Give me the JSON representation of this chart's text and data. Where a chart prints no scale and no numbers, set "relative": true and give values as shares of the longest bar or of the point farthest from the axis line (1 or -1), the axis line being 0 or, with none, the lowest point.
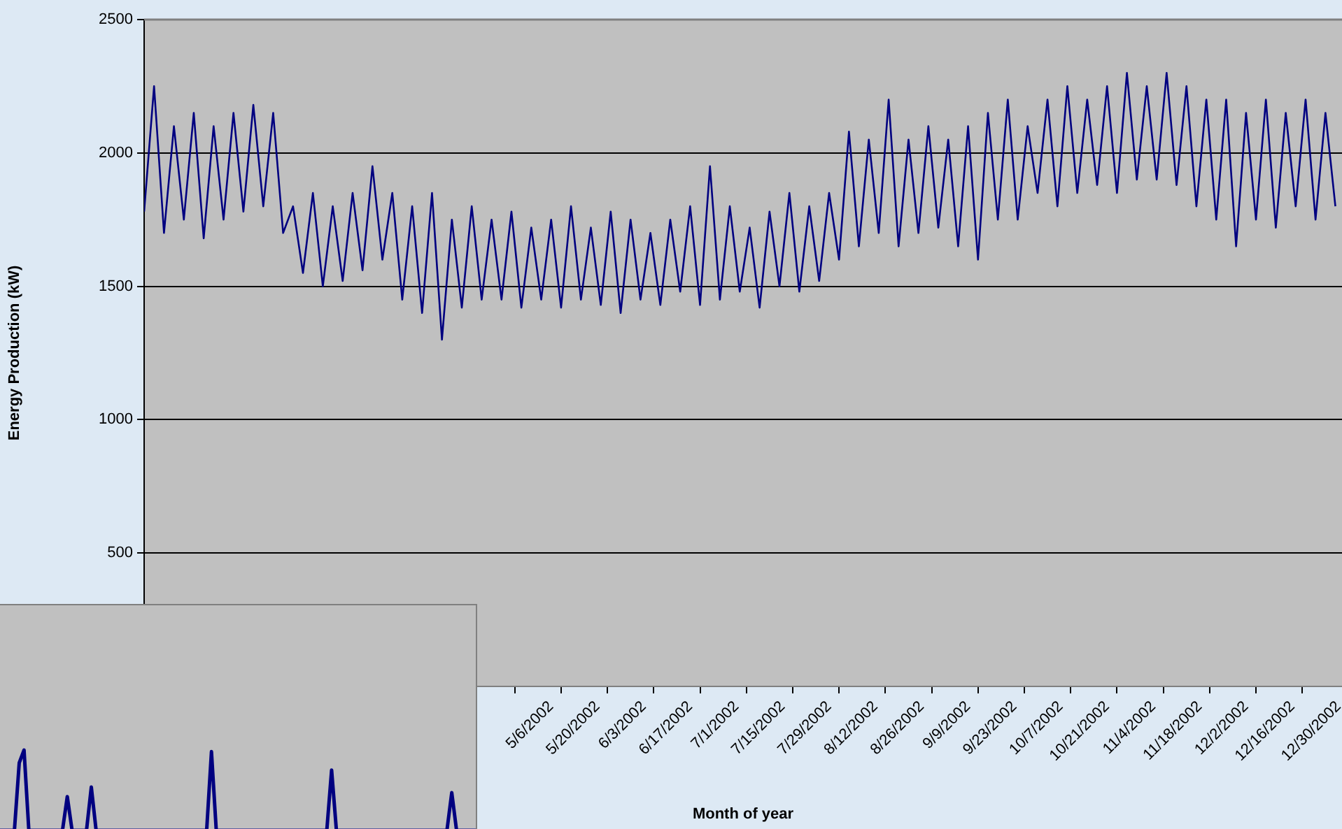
{
  "chart_data": [
    {
      "type": "line",
      "xlabel": "Month of year",
      "ylabel": "Energy Production (kW)",
      "color": "#000080",
      "grid": "y",
      "legend": false,
      "marker": "none",
      "xlim": [
        "2002-01-14",
        "2003-01-11"
      ],
      "ylim": [
        0,
        2500
      ],
      "yticks": [
        500,
        1000,
        1500,
        2000,
        2500
      ],
      "xticks": [
        {
          "value": "2002-05-06",
          "label": "5/6/2002"
        },
        {
          "value": "2002-05-20",
          "label": "5/20/2002"
        },
        {
          "value": "2002-06-03",
          "label": "6/3/2002"
        },
        {
          "value": "2002-06-17",
          "label": "6/17/2002"
        },
        {
          "value": "2002-07-01",
          "label": "7/1/2002"
        },
        {
          "value": "2002-07-15",
          "label": "7/15/2002"
        },
        {
          "value": "2002-07-29",
          "label": "7/29/2002"
        },
        {
          "value": "2002-08-12",
          "label": "8/12/2002"
        },
        {
          "value": "2002-08-26",
          "label": "8/26/2002"
        },
        {
          "value": "2002-09-09",
          "label": "9/9/2002"
        },
        {
          "value": "2002-09-23",
          "label": "9/23/2002"
        },
        {
          "value": "2002-10-07",
          "label": "10/7/2002"
        },
        {
          "value": "2002-10-21",
          "label": "10/21/2002"
        },
        {
          "value": "2002-11-04",
          "label": "11/4/2002"
        },
        {
          "value": "2002-11-18",
          "label": "11/18/2002"
        },
        {
          "value": "2002-12-02",
          "label": "12/2/2002"
        },
        {
          "value": "2002-12-16",
          "label": "12/16/2002"
        },
        {
          "value": "2002-12-30",
          "label": "12/30/2002"
        }
      ],
      "x": [
        "2002-01-14",
        "2002-01-17",
        "2002-01-20",
        "2002-01-23",
        "2002-01-26",
        "2002-01-29",
        "2002-02-01",
        "2002-02-04",
        "2002-02-07",
        "2002-02-10",
        "2002-02-13",
        "2002-02-16",
        "2002-02-19",
        "2002-02-22",
        "2002-02-25",
        "2002-02-28",
        "2002-03-03",
        "2002-03-06",
        "2002-03-09",
        "2002-03-12",
        "2002-03-15",
        "2002-03-18",
        "2002-03-21",
        "2002-03-24",
        "2002-03-27",
        "2002-03-30",
        "2002-04-02",
        "2002-04-05",
        "2002-04-08",
        "2002-04-11",
        "2002-04-14",
        "2002-04-17",
        "2002-04-20",
        "2002-04-23",
        "2002-04-26",
        "2002-04-29",
        "2002-05-02",
        "2002-05-05",
        "2002-05-08",
        "2002-05-11",
        "2002-05-14",
        "2002-05-17",
        "2002-05-20",
        "2002-05-23",
        "2002-05-26",
        "2002-05-29",
        "2002-06-01",
        "2002-06-04",
        "2002-06-07",
        "2002-06-10",
        "2002-06-13",
        "2002-06-16",
        "2002-06-19",
        "2002-06-22",
        "2002-06-25",
        "2002-06-28",
        "2002-07-01",
        "2002-07-04",
        "2002-07-07",
        "2002-07-10",
        "2002-07-13",
        "2002-07-16",
        "2002-07-19",
        "2002-07-22",
        "2002-07-25",
        "2002-07-28",
        "2002-07-31",
        "2002-08-03",
        "2002-08-06",
        "2002-08-09",
        "2002-08-12",
        "2002-08-15",
        "2002-08-18",
        "2002-08-21",
        "2002-08-24",
        "2002-08-27",
        "2002-08-30",
        "2002-09-02",
        "2002-09-05",
        "2002-09-08",
        "2002-09-11",
        "2002-09-14",
        "2002-09-17",
        "2002-09-20",
        "2002-09-23",
        "2002-09-26",
        "2002-09-29",
        "2002-10-02",
        "2002-10-05",
        "2002-10-08",
        "2002-10-11",
        "2002-10-14",
        "2002-10-17",
        "2002-10-20",
        "2002-10-23",
        "2002-10-26",
        "2002-10-29",
        "2002-11-01",
        "2002-11-04",
        "2002-11-07",
        "2002-11-10",
        "2002-11-13",
        "2002-11-16",
        "2002-11-19",
        "2002-11-22",
        "2002-11-25",
        "2002-11-28",
        "2002-12-01",
        "2002-12-04",
        "2002-12-07",
        "2002-12-10",
        "2002-12-13",
        "2002-12-16",
        "2002-12-19",
        "2002-12-22",
        "2002-12-25",
        "2002-12-28",
        "2002-12-31",
        "2003-01-03",
        "2003-01-06",
        "2003-01-09"
      ],
      "values": [
        1780,
        2250,
        1700,
        2100,
        1750,
        2150,
        1680,
        2100,
        1750,
        2150,
        1780,
        2180,
        1800,
        2150,
        1700,
        1800,
        1550,
        1850,
        1500,
        1800,
        1520,
        1850,
        1560,
        1950,
        1600,
        1850,
        1450,
        1800,
        1400,
        1850,
        1300,
        1750,
        1420,
        1800,
        1450,
        1750,
        1450,
        1780,
        1420,
        1720,
        1450,
        1750,
        1420,
        1800,
        1450,
        1720,
        1430,
        1780,
        1400,
        1750,
        1450,
        1700,
        1430,
        1750,
        1480,
        1800,
        1430,
        1950,
        1450,
        1800,
        1480,
        1720,
        1420,
        1780,
        1500,
        1850,
        1480,
        1800,
        1520,
        1850,
        1600,
        2080,
        1650,
        2050,
        1700,
        2200,
        1650,
        2050,
        1700,
        2100,
        1720,
        2050,
        1650,
        2100,
        1600,
        2150,
        1750,
        2200,
        1750,
        2100,
        1850,
        2200,
        1800,
        2250,
        1850,
        2200,
        1880,
        2250,
        1850,
        2300,
        1900,
        2250,
        1900,
        2300,
        1880,
        2250,
        1800,
        2200,
        1750,
        2200,
        1650,
        2150,
        1750,
        2200,
        1720,
        2150,
        1800,
        2200,
        1750,
        2150,
        1800
      ]
    },
    {
      "type": "line",
      "color": "#000080",
      "legend": false,
      "marker": "none",
      "relative": true,
      "categories": [
        null,
        null,
        null,
        null,
        null,
        null,
        null,
        null,
        null,
        null,
        null,
        null,
        null,
        null,
        null,
        null,
        null,
        null,
        null,
        null,
        null,
        null,
        null,
        null,
        null,
        null,
        null,
        null,
        null,
        null,
        null,
        null,
        null,
        null,
        null,
        null,
        null,
        null,
        null,
        null,
        null,
        null,
        null,
        null,
        null,
        null,
        null,
        null,
        null,
        null,
        null,
        null,
        null,
        null,
        null,
        null,
        null,
        null,
        null,
        null,
        null,
        null,
        null,
        null,
        null,
        null,
        null,
        null,
        null,
        null,
        null,
        null,
        null,
        null,
        null,
        null,
        null,
        null,
        null,
        null,
        null,
        null,
        null,
        null,
        null,
        null,
        null,
        null,
        null,
        null,
        null,
        null,
        null,
        null,
        null,
        null,
        null,
        null,
        null,
        null
      ],
      "values": [
        0,
        0,
        0,
        0,
        0.84,
        1,
        0,
        0,
        0,
        0,
        0,
        0,
        0,
        0,
        0.42,
        0,
        0,
        0,
        0,
        0.54,
        0,
        0,
        0,
        0,
        0,
        0,
        0,
        0,
        0,
        0,
        0,
        0,
        0,
        0,
        0,
        0,
        0,
        0,
        0,
        0,
        0,
        0,
        0,
        0,
        0.98,
        0,
        0,
        0,
        0,
        0,
        0,
        0,
        0,
        0,
        0,
        0,
        0,
        0,
        0,
        0,
        0,
        0,
        0,
        0,
        0,
        0,
        0,
        0,
        0,
        0.75,
        0,
        0,
        0,
        0,
        0,
        0,
        0,
        0,
        0,
        0,
        0,
        0,
        0,
        0,
        0,
        0,
        0,
        0,
        0,
        0,
        0,
        0,
        0,
        0,
        0.47,
        0,
        0,
        0,
        0,
        0
      ]
    }
  ]
}
